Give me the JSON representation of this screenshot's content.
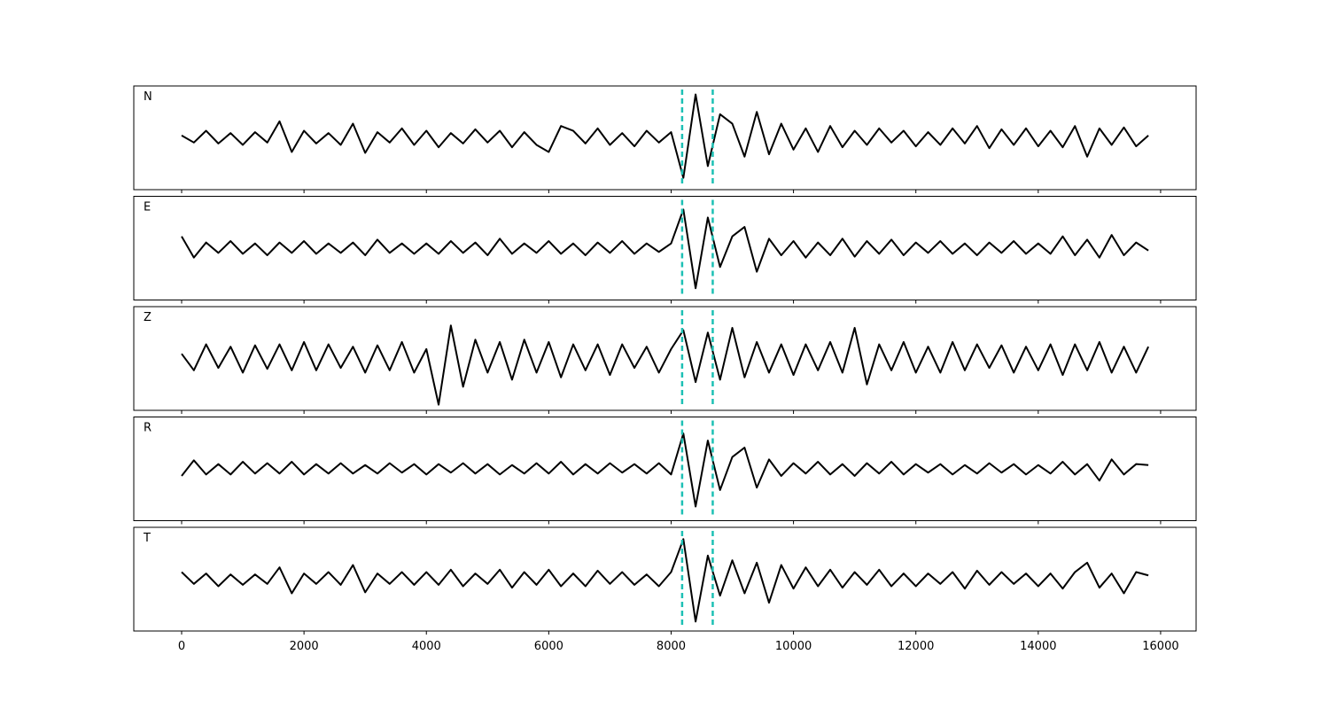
{
  "chart_data": {
    "type": "line",
    "layout": "stacked",
    "x": [
      0,
      200,
      400,
      600,
      800,
      1000,
      1200,
      1400,
      1600,
      1800,
      2000,
      2200,
      2400,
      2600,
      2800,
      3000,
      3200,
      3400,
      3600,
      3800,
      4000,
      4200,
      4400,
      4600,
      4800,
      5000,
      5200,
      5400,
      5600,
      5800,
      6000,
      6200,
      6400,
      6600,
      6800,
      7000,
      7200,
      7400,
      7600,
      7800,
      8000,
      8200,
      8400,
      8600,
      8800,
      9000,
      9200,
      9400,
      9600,
      9800,
      10000,
      10200,
      10400,
      10600,
      10800,
      11000,
      11200,
      11400,
      11600,
      11800,
      12000,
      12200,
      12400,
      12600,
      12800,
      13000,
      13200,
      13400,
      13600,
      13800,
      14000,
      14200,
      14400,
      14600,
      14800,
      15000,
      15200,
      15400,
      15600,
      15800
    ],
    "xlim": [
      -782,
      16580
    ],
    "xticks": [
      0,
      2000,
      4000,
      6000,
      8000,
      10000,
      12000,
      14000,
      16000
    ],
    "ylim": [
      -1.1,
      1.1
    ],
    "vlines": [
      8180,
      8680
    ],
    "vline_color": "#1cc0b4",
    "series": [
      {
        "name": "N",
        "color": "#000000",
        "values": [
          0.05,
          -0.1,
          0.15,
          -0.12,
          0.1,
          -0.15,
          0.12,
          -0.1,
          0.35,
          -0.3,
          0.15,
          -0.12,
          0.1,
          -0.15,
          0.3,
          -0.32,
          0.12,
          -0.1,
          0.2,
          -0.15,
          0.15,
          -0.2,
          0.1,
          -0.12,
          0.18,
          -0.1,
          0.15,
          -0.2,
          0.12,
          -0.15,
          -0.3,
          0.25,
          0.15,
          -0.12,
          0.2,
          -0.15,
          0.1,
          -0.18,
          0.15,
          -0.1,
          0.12,
          -0.85,
          0.92,
          -0.6,
          0.5,
          0.3,
          -0.4,
          0.55,
          -0.35,
          0.3,
          -0.25,
          0.2,
          -0.3,
          0.25,
          -0.2,
          0.15,
          -0.15,
          0.2,
          -0.1,
          0.15,
          -0.18,
          0.12,
          -0.15,
          0.2,
          -0.12,
          0.25,
          -0.22,
          0.18,
          -0.15,
          0.2,
          -0.18,
          0.15,
          -0.2,
          0.25,
          -0.4,
          0.2,
          -0.15,
          0.22,
          -0.18,
          0.05
        ]
      },
      {
        "name": "E",
        "color": "#000000",
        "values": [
          0.25,
          -0.2,
          0.12,
          -0.1,
          0.15,
          -0.12,
          0.1,
          -0.15,
          0.12,
          -0.1,
          0.15,
          -0.12,
          0.1,
          -0.1,
          0.12,
          -0.15,
          0.18,
          -0.1,
          0.1,
          -0.12,
          0.1,
          -0.12,
          0.15,
          -0.1,
          0.12,
          -0.15,
          0.2,
          -0.12,
          0.1,
          -0.1,
          0.15,
          -0.12,
          0.1,
          -0.15,
          0.12,
          -0.1,
          0.15,
          -0.12,
          0.1,
          -0.08,
          0.1,
          0.82,
          -0.85,
          0.65,
          -0.4,
          0.25,
          0.45,
          -0.5,
          0.2,
          -0.15,
          0.15,
          -0.2,
          0.12,
          -0.15,
          0.2,
          -0.18,
          0.15,
          -0.12,
          0.18,
          -0.15,
          0.12,
          -0.1,
          0.15,
          -0.12,
          0.1,
          -0.15,
          0.12,
          -0.1,
          0.15,
          -0.12,
          0.1,
          -0.12,
          0.25,
          -0.15,
          0.18,
          -0.2,
          0.28,
          -0.15,
          0.12,
          -0.05
        ]
      },
      {
        "name": "Z",
        "color": "#000000",
        "values": [
          0.1,
          -0.25,
          0.3,
          -0.2,
          0.25,
          -0.3,
          0.28,
          -0.22,
          0.3,
          -0.25,
          0.35,
          -0.25,
          0.3,
          -0.2,
          0.25,
          -0.3,
          0.28,
          -0.25,
          0.35,
          -0.3,
          0.2,
          -0.98,
          0.7,
          -0.6,
          0.4,
          -0.3,
          0.35,
          -0.45,
          0.4,
          -0.3,
          0.35,
          -0.4,
          0.3,
          -0.25,
          0.3,
          -0.35,
          0.3,
          -0.2,
          0.25,
          -0.3,
          0.2,
          0.6,
          -0.5,
          0.55,
          -0.45,
          0.65,
          -0.4,
          0.35,
          -0.3,
          0.3,
          -0.35,
          0.3,
          -0.25,
          0.35,
          -0.3,
          0.65,
          -0.55,
          0.3,
          -0.25,
          0.35,
          -0.3,
          0.25,
          -0.3,
          0.35,
          -0.25,
          0.3,
          -0.2,
          0.28,
          -0.3,
          0.25,
          -0.25,
          0.3,
          -0.35,
          0.3,
          -0.25,
          0.35,
          -0.3,
          0.25,
          -0.3,
          0.25
        ]
      },
      {
        "name": "R",
        "color": "#000000",
        "values": [
          -0.15,
          0.18,
          -0.12,
          0.1,
          -0.12,
          0.15,
          -0.1,
          0.12,
          -0.1,
          0.15,
          -0.12,
          0.1,
          -0.1,
          0.12,
          -0.1,
          0.08,
          -0.1,
          0.12,
          -0.08,
          0.1,
          -0.12,
          0.1,
          -0.08,
          0.12,
          -0.1,
          0.1,
          -0.12,
          0.08,
          -0.1,
          0.12,
          -0.1,
          0.15,
          -0.12,
          0.1,
          -0.1,
          0.12,
          -0.08,
          0.1,
          -0.1,
          0.12,
          -0.12,
          0.75,
          -0.8,
          0.6,
          -0.45,
          0.25,
          0.45,
          -0.4,
          0.2,
          -0.15,
          0.12,
          -0.1,
          0.15,
          -0.12,
          0.1,
          -0.15,
          0.12,
          -0.1,
          0.15,
          -0.12,
          0.1,
          -0.08,
          0.1,
          -0.12,
          0.08,
          -0.1,
          0.12,
          -0.08,
          0.1,
          -0.12,
          0.08,
          -0.1,
          0.15,
          -0.12,
          0.1,
          -0.25,
          0.2,
          -0.12,
          0.1,
          0.08
        ]
      },
      {
        "name": "T",
        "color": "#000000",
        "values": [
          0.15,
          -0.1,
          0.12,
          -0.15,
          0.1,
          -0.12,
          0.1,
          -0.1,
          0.25,
          -0.3,
          0.12,
          -0.1,
          0.15,
          -0.12,
          0.3,
          -0.28,
          0.12,
          -0.1,
          0.15,
          -0.12,
          0.15,
          -0.12,
          0.2,
          -0.15,
          0.12,
          -0.1,
          0.2,
          -0.18,
          0.15,
          -0.12,
          0.2,
          -0.15,
          0.12,
          -0.15,
          0.18,
          -0.1,
          0.15,
          -0.12,
          0.1,
          -0.15,
          0.15,
          0.85,
          -0.9,
          0.5,
          -0.35,
          0.4,
          -0.3,
          0.35,
          -0.5,
          0.3,
          -0.2,
          0.25,
          -0.15,
          0.2,
          -0.18,
          0.15,
          -0.12,
          0.2,
          -0.15,
          0.12,
          -0.15,
          0.12,
          -0.1,
          0.15,
          -0.2,
          0.18,
          -0.12,
          0.15,
          -0.1,
          0.12,
          -0.15,
          0.12,
          -0.2,
          0.15,
          0.35,
          -0.18,
          0.12,
          -0.3,
          0.15,
          0.08
        ]
      }
    ]
  }
}
